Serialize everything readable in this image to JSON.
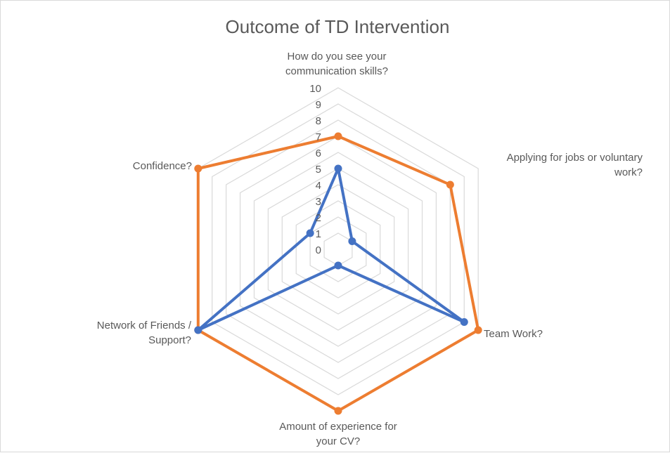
{
  "chart_data": {
    "type": "radar",
    "title": "Outcome of TD Intervention",
    "axes": [
      [
        "How do you see your",
        "communication skills?"
      ],
      [
        "Applying for jobs or voluntary",
        "work?"
      ],
      [
        "Team Work?"
      ],
      [
        "Amount of experience for",
        "your CV?"
      ],
      [
        "Network of Friends /",
        "Support?"
      ],
      [
        "Confidence?"
      ]
    ],
    "ticks": [
      "0",
      "1",
      "2",
      "3",
      "4",
      "5",
      "6",
      "7",
      "8",
      "9",
      "10"
    ],
    "rlim": [
      0,
      10
    ],
    "grid": true,
    "legend": "none",
    "series": [
      {
        "color": "#ED7D31",
        "values": [
          7,
          8,
          10,
          10,
          10,
          10
        ]
      },
      {
        "color": "#4472C4",
        "values": [
          5,
          1,
          9,
          1,
          10,
          2
        ]
      }
    ]
  }
}
